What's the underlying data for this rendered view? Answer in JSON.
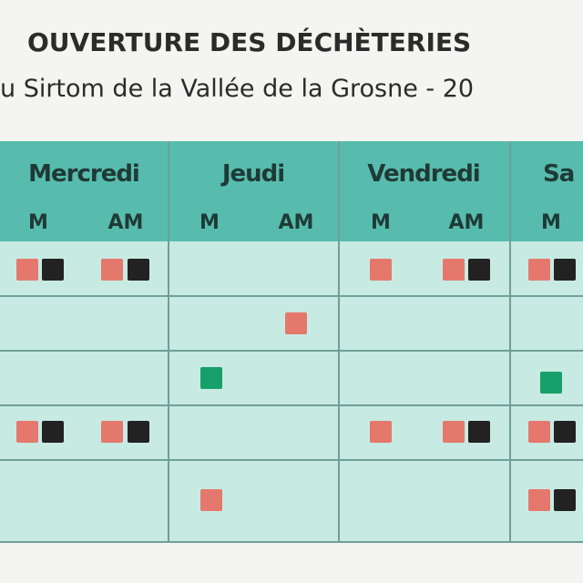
{
  "header": {
    "title": "OUVERTURE DES DÉCHÈTERIES",
    "subtitle": "u Sirtom de la Vallée de la Grosne - 20"
  },
  "table": {
    "days": [
      "Mercredi",
      "Jeudi",
      "Vendredi",
      "Sa"
    ],
    "periods": [
      "M",
      "AM"
    ]
  }
}
